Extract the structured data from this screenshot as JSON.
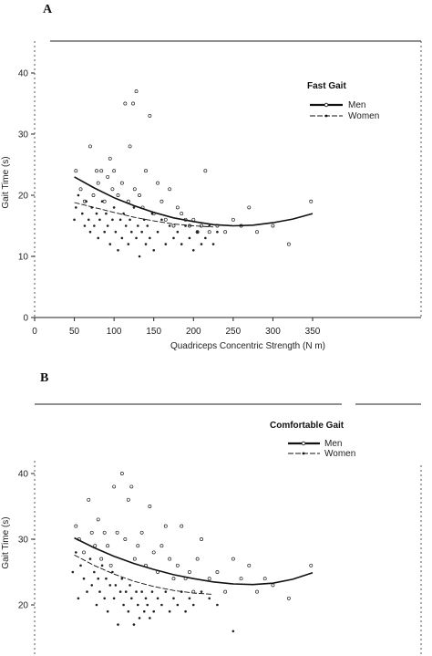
{
  "chart_data": [
    {
      "panel": "A",
      "type": "scatter",
      "title": "",
      "xlabel": "Quadriceps Concentric Strength (N m)",
      "ylabel": "Gait Time (s)",
      "xlim": [
        0,
        350
      ],
      "ylim": [
        0,
        45
      ],
      "xticks": [
        0,
        50,
        100,
        150,
        200,
        250,
        300,
        350
      ],
      "yticks": [
        0,
        10,
        20,
        30,
        40
      ],
      "legend": {
        "title": "Fast Gait",
        "position": "top-right",
        "entries": [
          "Men",
          "Women"
        ]
      },
      "series": [
        {
          "name": "Men",
          "fit_x": [
            50,
            75,
            100,
            125,
            150,
            175,
            200,
            225,
            250,
            275,
            300,
            325,
            350
          ],
          "fit_y": [
            23.0,
            21.2,
            19.6,
            18.3,
            17.2,
            16.3,
            15.7,
            15.2,
            15.0,
            15.1,
            15.5,
            16.1,
            17.0
          ],
          "points": [
            [
              52,
              24
            ],
            [
              58,
              21
            ],
            [
              63,
              19
            ],
            [
              70,
              28
            ],
            [
              74,
              20
            ],
            [
              78,
              24
            ],
            [
              80,
              22
            ],
            [
              84,
              24
            ],
            [
              88,
              19
            ],
            [
              92,
              23
            ],
            [
              95,
              26
            ],
            [
              98,
              21
            ],
            [
              100,
              24
            ],
            [
              105,
              20
            ],
            [
              110,
              22
            ],
            [
              114,
              35
            ],
            [
              118,
              19
            ],
            [
              120,
              28
            ],
            [
              124,
              35
            ],
            [
              126,
              21
            ],
            [
              128,
              37
            ],
            [
              132,
              20
            ],
            [
              136,
              18
            ],
            [
              140,
              24
            ],
            [
              145,
              33
            ],
            [
              150,
              17
            ],
            [
              155,
              22
            ],
            [
              160,
              19
            ],
            [
              165,
              16
            ],
            [
              170,
              21
            ],
            [
              175,
              15
            ],
            [
              180,
              18
            ],
            [
              185,
              17
            ],
            [
              190,
              16
            ],
            [
              195,
              15
            ],
            [
              200,
              16
            ],
            [
              205,
              14
            ],
            [
              210,
              15
            ],
            [
              215,
              24
            ],
            [
              220,
              14
            ],
            [
              230,
              15
            ],
            [
              240,
              14
            ],
            [
              250,
              16
            ],
            [
              260,
              15
            ],
            [
              270,
              18
            ],
            [
              280,
              14
            ],
            [
              300,
              15
            ],
            [
              320,
              12
            ],
            [
              348,
              19
            ]
          ]
        },
        {
          "name": "Women",
          "fit_x": [
            50,
            75,
            100,
            125,
            150,
            175,
            200,
            225
          ],
          "fit_y": [
            18.8,
            18.0,
            17.2,
            16.4,
            15.8,
            15.3,
            15.0,
            14.8
          ],
          "points": [
            [
              50,
              16
            ],
            [
              52,
              18
            ],
            [
              55,
              20
            ],
            [
              60,
              17
            ],
            [
              63,
              15
            ],
            [
              65,
              19
            ],
            [
              68,
              16
            ],
            [
              70,
              14
            ],
            [
              72,
              18
            ],
            [
              75,
              15
            ],
            [
              78,
              17
            ],
            [
              80,
              13
            ],
            [
              82,
              16
            ],
            [
              85,
              19
            ],
            [
              88,
              14
            ],
            [
              90,
              17
            ],
            [
              92,
              15
            ],
            [
              95,
              12
            ],
            [
              98,
              16
            ],
            [
              100,
              18
            ],
            [
              102,
              14
            ],
            [
              105,
              11
            ],
            [
              108,
              16
            ],
            [
              110,
              13
            ],
            [
              112,
              17
            ],
            [
              115,
              15
            ],
            [
              118,
              12
            ],
            [
              120,
              16
            ],
            [
              122,
              14
            ],
            [
              125,
              18
            ],
            [
              128,
              13
            ],
            [
              130,
              15
            ],
            [
              132,
              10
            ],
            [
              135,
              14
            ],
            [
              138,
              16
            ],
            [
              140,
              12
            ],
            [
              142,
              15
            ],
            [
              145,
              13
            ],
            [
              148,
              17
            ],
            [
              150,
              11
            ],
            [
              155,
              14
            ],
            [
              160,
              16
            ],
            [
              165,
              12
            ],
            [
              170,
              15
            ],
            [
              175,
              13
            ],
            [
              180,
              14
            ],
            [
              185,
              12
            ],
            [
              190,
              15
            ],
            [
              195,
              13
            ],
            [
              200,
              11
            ],
            [
              205,
              14
            ],
            [
              210,
              12
            ],
            [
              215,
              13
            ],
            [
              220,
              15
            ],
            [
              225,
              12
            ],
            [
              230,
              14
            ]
          ]
        }
      ]
    },
    {
      "panel": "B",
      "type": "scatter",
      "title": "",
      "xlabel": "",
      "ylabel": "Gait Time (s)",
      "xlim": [
        0,
        350
      ],
      "ylim": [
        10,
        45
      ],
      "yticks": [
        20,
        30,
        40
      ],
      "legend": {
        "title": "Comfortable Gait",
        "position": "top-right",
        "entries": [
          "Men",
          "Women"
        ]
      },
      "series": [
        {
          "name": "Men",
          "fit_x": [
            50,
            75,
            100,
            125,
            150,
            175,
            200,
            225,
            250,
            275,
            300,
            325,
            350
          ],
          "fit_y": [
            30.2,
            28.7,
            27.4,
            26.3,
            25.4,
            24.6,
            24.0,
            23.5,
            23.2,
            23.1,
            23.3,
            23.9,
            24.9
          ],
          "points": [
            [
              52,
              32
            ],
            [
              56,
              30
            ],
            [
              62,
              28
            ],
            [
              68,
              36
            ],
            [
              72,
              31
            ],
            [
              76,
              29
            ],
            [
              80,
              33
            ],
            [
              84,
              27
            ],
            [
              88,
              31
            ],
            [
              92,
              29
            ],
            [
              96,
              26
            ],
            [
              100,
              38
            ],
            [
              104,
              31
            ],
            [
              110,
              40
            ],
            [
              114,
              30
            ],
            [
              118,
              36
            ],
            [
              122,
              38
            ],
            [
              126,
              27
            ],
            [
              130,
              29
            ],
            [
              135,
              31
            ],
            [
              140,
              26
            ],
            [
              145,
              35
            ],
            [
              150,
              28
            ],
            [
              155,
              25
            ],
            [
              160,
              29
            ],
            [
              165,
              32
            ],
            [
              170,
              27
            ],
            [
              175,
              24
            ],
            [
              180,
              26
            ],
            [
              185,
              32
            ],
            [
              190,
              24
            ],
            [
              195,
              25
            ],
            [
              200,
              22
            ],
            [
              205,
              27
            ],
            [
              210,
              30
            ],
            [
              220,
              24
            ],
            [
              230,
              25
            ],
            [
              240,
              22
            ],
            [
              250,
              27
            ],
            [
              260,
              24
            ],
            [
              270,
              26
            ],
            [
              280,
              22
            ],
            [
              290,
              24
            ],
            [
              300,
              23
            ],
            [
              320,
              21
            ],
            [
              348,
              26
            ]
          ]
        },
        {
          "name": "Women",
          "fit_x": [
            50,
            75,
            100,
            125,
            150,
            175,
            200,
            225
          ],
          "fit_y": [
            27.6,
            26.0,
            24.7,
            23.6,
            22.8,
            22.2,
            21.8,
            21.6
          ],
          "points": [
            [
              48,
              25
            ],
            [
              52,
              28
            ],
            [
              55,
              21
            ],
            [
              58,
              26
            ],
            [
              62,
              24
            ],
            [
              66,
              22
            ],
            [
              70,
              27
            ],
            [
              72,
              23
            ],
            [
              75,
              25
            ],
            [
              78,
              20
            ],
            [
              80,
              24
            ],
            [
              82,
              22
            ],
            [
              85,
              26
            ],
            [
              88,
              21
            ],
            [
              90,
              24
            ],
            [
              92,
              19
            ],
            [
              95,
              23
            ],
            [
              98,
              25
            ],
            [
              100,
              21
            ],
            [
              102,
              23
            ],
            [
              105,
              17
            ],
            [
              108,
              22
            ],
            [
              110,
              24
            ],
            [
              112,
              20
            ],
            [
              115,
              22
            ],
            [
              118,
              19
            ],
            [
              120,
              23
            ],
            [
              122,
              21
            ],
            [
              125,
              17
            ],
            [
              128,
              22
            ],
            [
              130,
              20
            ],
            [
              132,
              18
            ],
            [
              135,
              22
            ],
            [
              138,
              19
            ],
            [
              140,
              21
            ],
            [
              142,
              20
            ],
            [
              145,
              18
            ],
            [
              148,
              22
            ],
            [
              150,
              19
            ],
            [
              155,
              21
            ],
            [
              160,
              20
            ],
            [
              165,
              22
            ],
            [
              170,
              19
            ],
            [
              175,
              21
            ],
            [
              180,
              20
            ],
            [
              185,
              22
            ],
            [
              190,
              19
            ],
            [
              195,
              21
            ],
            [
              200,
              20
            ],
            [
              210,
              22
            ],
            [
              220,
              21
            ],
            [
              230,
              20
            ],
            [
              250,
              16
            ]
          ]
        }
      ]
    }
  ]
}
